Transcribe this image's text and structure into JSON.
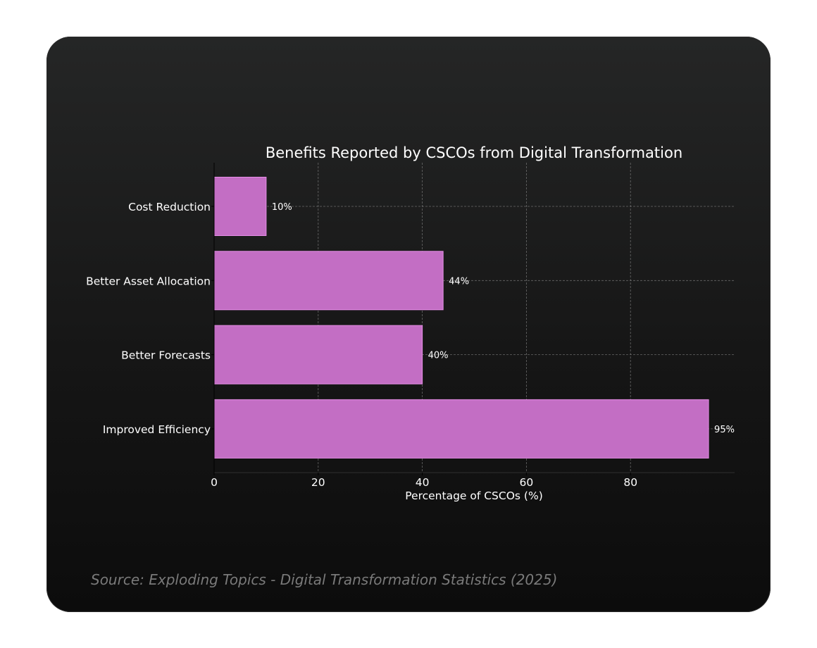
{
  "chart_data": {
    "type": "bar",
    "orientation": "horizontal",
    "title": "Benefits Reported by CSCOs from Digital Transformation",
    "xlabel": "Percentage of CSCOs (%)",
    "ylabel": "",
    "categories": [
      "Cost Reduction",
      "Better Asset Allocation",
      "Better Forecasts",
      "Improved Efficiency"
    ],
    "values": [
      10,
      44,
      40,
      95
    ],
    "value_labels": [
      "10%",
      "44%",
      "40%",
      "95%"
    ],
    "xticks": [
      0,
      20,
      40,
      60,
      80
    ],
    "xtick_labels": [
      "0",
      "20",
      "40",
      "60",
      "80"
    ],
    "xlim": [
      0,
      100
    ],
    "grid": true,
    "legend": "none",
    "colors": {
      "bar": "#c36ec4",
      "bar_edge": "#e58ee6",
      "text": "#ffffff",
      "grid": "#8a8a8a"
    }
  },
  "source": "Source: Exploding Topics - Digital Transformation Statistics (2025)"
}
